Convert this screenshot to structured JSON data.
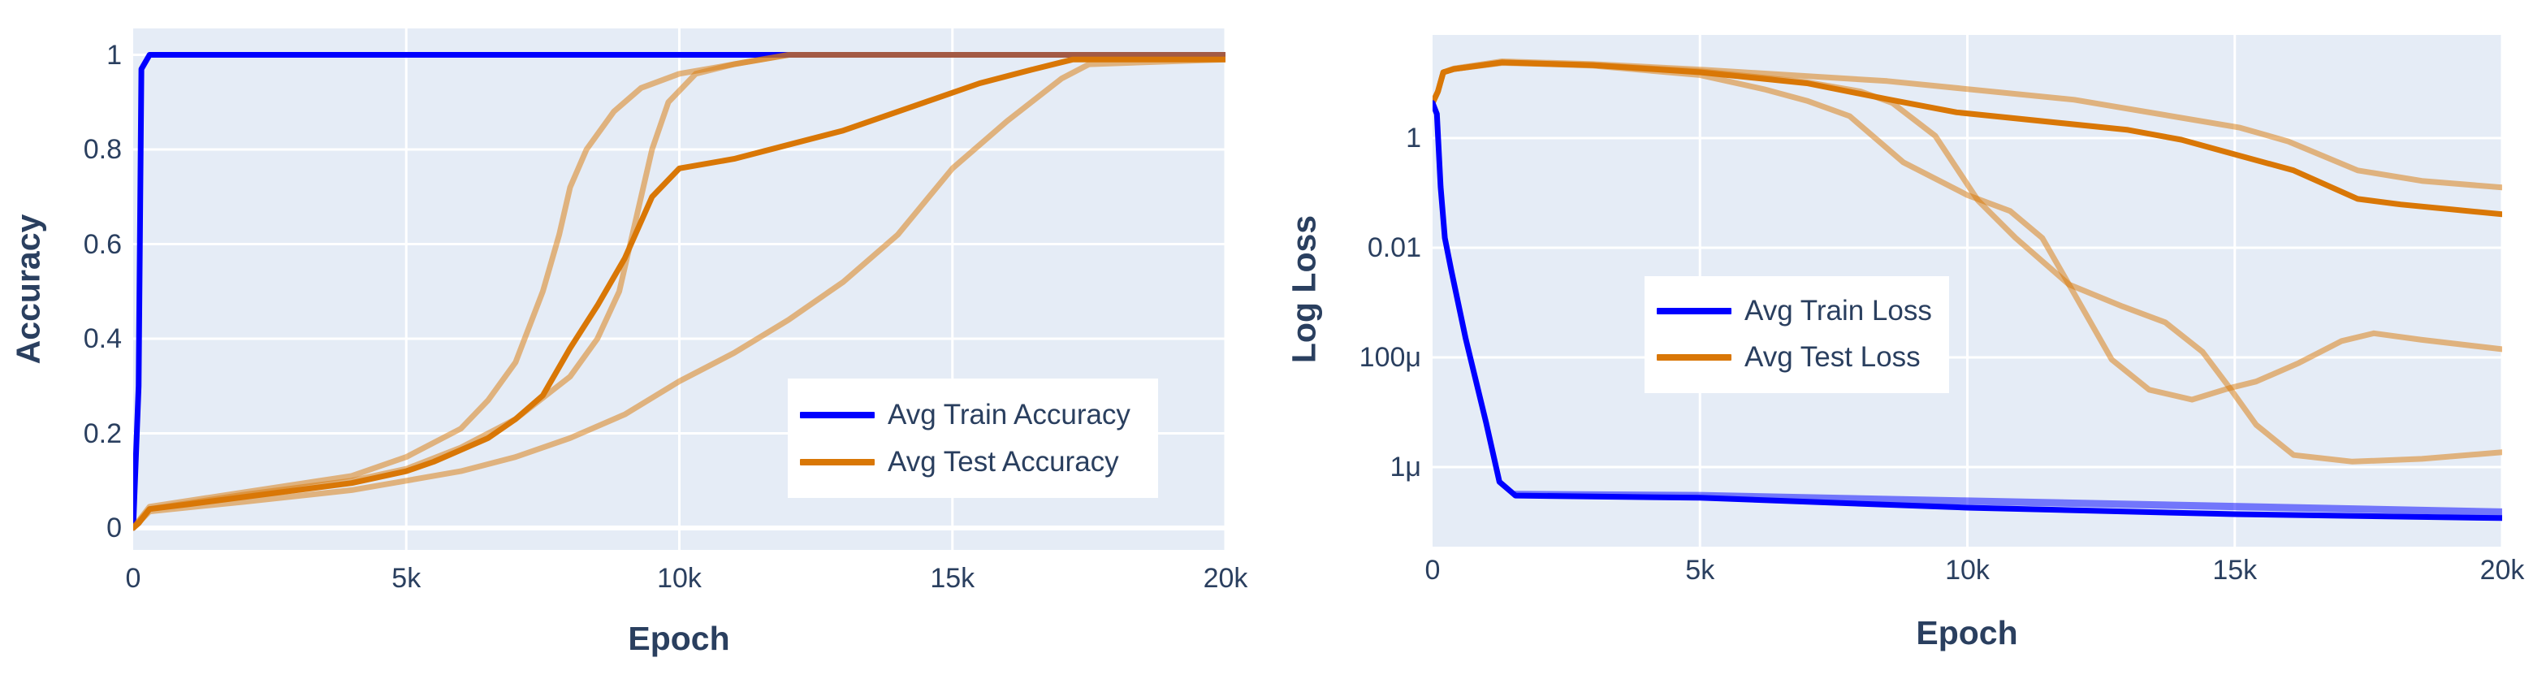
{
  "chart_data": [
    {
      "type": "line",
      "title": "",
      "xlabel": "Epoch",
      "ylabel": "Accuracy",
      "xlim": [
        0,
        20000
      ],
      "ylim": [
        -0.09,
        1.055
      ],
      "grid": true,
      "legend_position": "inside-bottom-right",
      "x_ticks": [
        {
          "v": 0,
          "label": "0"
        },
        {
          "v": 5000,
          "label": "5k"
        },
        {
          "v": 10000,
          "label": "10k"
        },
        {
          "v": 15000,
          "label": "15k"
        },
        {
          "v": 20000,
          "label": "20k"
        }
      ],
      "y_ticks": [
        {
          "v": 0,
          "label": "0"
        },
        {
          "v": 0.2,
          "label": "0.2"
        },
        {
          "v": 0.4,
          "label": "0.4"
        },
        {
          "v": 0.6,
          "label": "0.6"
        },
        {
          "v": 0.8,
          "label": "0.8"
        },
        {
          "v": 1,
          "label": "1"
        }
      ],
      "legend": [
        {
          "label": "Avg Train Accuracy",
          "color": "#0000ff"
        },
        {
          "label": "Avg Test Accuracy",
          "color": "#d97706"
        }
      ],
      "series": [
        {
          "name": "Avg Train Accuracy",
          "color": "#0000ff",
          "opacity": 1,
          "width": 7,
          "x": [
            0,
            100,
            150,
            300,
            20000
          ],
          "y": [
            0,
            0.3,
            0.97,
            1,
            1
          ]
        },
        {
          "name": "Test Accuracy run 1",
          "color": "#d97706",
          "opacity": 0.5,
          "width": 7,
          "in_legend": false,
          "x": [
            0,
            300,
            2000,
            4000,
            5000,
            6000,
            6500,
            7000,
            7500,
            7800,
            8000,
            8300,
            8800,
            9300,
            10000,
            11000,
            12000,
            20000
          ],
          "y": [
            0,
            0.045,
            0.075,
            0.11,
            0.15,
            0.21,
            0.27,
            0.35,
            0.5,
            0.62,
            0.72,
            0.8,
            0.88,
            0.93,
            0.96,
            0.98,
            1,
            1
          ]
        },
        {
          "name": "Test Accuracy run 2",
          "color": "#d97706",
          "opacity": 0.5,
          "width": 7,
          "in_legend": false,
          "x": [
            0,
            300,
            2000,
            4000,
            5000,
            6000,
            7000,
            8000,
            8500,
            8900,
            9200,
            9500,
            9800,
            10300,
            11000,
            12000,
            20000
          ],
          "y": [
            0,
            0.04,
            0.07,
            0.1,
            0.125,
            0.17,
            0.23,
            0.32,
            0.4,
            0.5,
            0.65,
            0.8,
            0.9,
            0.96,
            0.98,
            1,
            1
          ]
        },
        {
          "name": "Test Accuracy run 3",
          "color": "#d97706",
          "opacity": 0.5,
          "width": 7,
          "in_legend": false,
          "x": [
            0,
            300,
            2000,
            4000,
            5000,
            6000,
            7000,
            8000,
            9000,
            10000,
            11000,
            12000,
            13000,
            14000,
            14500,
            15000,
            16000,
            17000,
            17500,
            20000
          ],
          "y": [
            0,
            0.035,
            0.055,
            0.08,
            0.1,
            0.12,
            0.15,
            0.19,
            0.24,
            0.31,
            0.37,
            0.44,
            0.52,
            0.62,
            0.69,
            0.76,
            0.86,
            0.95,
            0.98,
            0.99
          ]
        },
        {
          "name": "Avg Test Accuracy",
          "color": "#d97706",
          "opacity": 1,
          "width": 7,
          "x": [
            0,
            100,
            300,
            1000,
            2000,
            3000,
            4000,
            5000,
            5500,
            6000,
            6500,
            7000,
            7500,
            8000,
            8500,
            9000,
            9500,
            10000,
            11000,
            12000,
            13000,
            13500,
            14500,
            15500,
            16500,
            17200,
            20000
          ],
          "y": [
            0,
            0.01,
            0.04,
            0.05,
            0.065,
            0.08,
            0.095,
            0.12,
            0.14,
            0.165,
            0.19,
            0.23,
            0.28,
            0.38,
            0.47,
            0.57,
            0.7,
            0.76,
            0.78,
            0.81,
            0.84,
            0.86,
            0.9,
            0.94,
            0.97,
            0.99,
            0.99
          ]
        }
      ]
    },
    {
      "type": "line",
      "title": "",
      "xlabel": "Epoch",
      "ylabel": "Log Loss",
      "yscale": "log",
      "xlim": [
        0,
        20000
      ],
      "ylim_log10": [
        -7.46,
        1.88
      ],
      "grid": true,
      "legend_position": "inside-middle-left",
      "x_ticks": [
        {
          "v": 0,
          "label": "0"
        },
        {
          "v": 5000,
          "label": "5k"
        },
        {
          "v": 10000,
          "label": "10k"
        },
        {
          "v": 15000,
          "label": "15k"
        },
        {
          "v": 20000,
          "label": "20k"
        }
      ],
      "y_ticks": [
        {
          "v": 0,
          "label": "1"
        },
        {
          "v": -2,
          "label": "0.01"
        },
        {
          "v": -4,
          "label": "100μ"
        },
        {
          "v": -6,
          "label": "1μ"
        }
      ],
      "legend": [
        {
          "label": "Avg Train Loss",
          "color": "#0000ff"
        },
        {
          "label": "Avg Test Loss",
          "color": "#d97706"
        }
      ],
      "series_note": "y values are log10(loss)",
      "series": [
        {
          "name": "Test Loss run 1",
          "color": "#d97706",
          "opacity": 0.5,
          "width": 7,
          "in_legend": false,
          "x": [
            0,
            100,
            200,
            400,
            1300,
            3000,
            5000,
            8500,
            12000,
            15100,
            16000,
            17300,
            18500,
            20000
          ],
          "y": [
            0.64,
            0.85,
            1.2,
            1.27,
            1.4,
            1.35,
            1.25,
            1.04,
            0.7,
            0.19,
            -0.06,
            -0.59,
            -0.78,
            -0.9
          ]
        },
        {
          "name": "Test Loss run 2",
          "color": "#d97706",
          "opacity": 0.5,
          "width": 7,
          "in_legend": false,
          "x": [
            0,
            100,
            200,
            400,
            1300,
            3000,
            5000,
            6200,
            7000,
            7800,
            8800,
            10000,
            10800,
            11400,
            11900,
            12700,
            13400,
            14200,
            14900,
            15400,
            16200,
            17000,
            17600,
            18500,
            20000
          ],
          "y": [
            0.64,
            0.85,
            1.2,
            1.26,
            1.38,
            1.32,
            1.15,
            0.89,
            0.68,
            0.4,
            -0.44,
            -1.04,
            -1.33,
            -1.82,
            -2.67,
            -4.04,
            -4.59,
            -4.77,
            -4.56,
            -4.44,
            -4.1,
            -3.7,
            -3.56,
            -3.68,
            -3.85
          ]
        },
        {
          "name": "Test Loss run 3",
          "color": "#d97706",
          "opacity": 0.5,
          "width": 7,
          "in_legend": false,
          "x": [
            0,
            100,
            200,
            400,
            1300,
            3000,
            5000,
            7000,
            8000,
            8600,
            9400,
            10200,
            10900,
            11900,
            12900,
            13700,
            14400,
            14900,
            15400,
            16100,
            17200,
            18500,
            20000
          ],
          "y": [
            0.64,
            0.85,
            1.2,
            1.26,
            1.37,
            1.33,
            1.22,
            1.02,
            0.85,
            0.64,
            0.04,
            -1.14,
            -1.82,
            -2.67,
            -3.07,
            -3.36,
            -3.9,
            -4.55,
            -5.23,
            -5.78,
            -5.9,
            -5.85,
            -5.73
          ]
        },
        {
          "name": "Avg Test Loss",
          "color": "#d97706",
          "opacity": 1,
          "width": 7,
          "x": [
            0,
            100,
            200,
            400,
            1300,
            3000,
            5000,
            7000,
            8500,
            9800,
            13000,
            14000,
            16100,
            17300,
            18100,
            20000
          ],
          "y": [
            0.64,
            0.85,
            1.2,
            1.26,
            1.38,
            1.33,
            1.2,
            1.0,
            0.71,
            0.47,
            0.15,
            -0.03,
            -0.59,
            -1.11,
            -1.21,
            -1.39
          ]
        },
        {
          "name": "Train Loss runs",
          "color": "#0000ff",
          "opacity": 0.5,
          "width": 9,
          "in_legend": false,
          "x": [
            1550,
            5000,
            10000,
            15000,
            20000
          ],
          "y": [
            -6.5,
            -6.52,
            -6.62,
            -6.72,
            -6.82
          ]
        },
        {
          "name": "Avg Train Loss",
          "color": "#0000ff",
          "opacity": 1,
          "width": 7,
          "x": [
            0,
            80,
            150,
            230,
            350,
            620,
            1000,
            1250,
            1550,
            5000,
            10000,
            15000,
            20000
          ],
          "y": [
            0.64,
            0.44,
            -0.89,
            -1.82,
            -2.41,
            -3.66,
            -5.19,
            -6.27,
            -6.52,
            -6.56,
            -6.74,
            -6.86,
            -6.93
          ]
        }
      ]
    }
  ],
  "figures": {
    "accuracy": {
      "ylabel": "Accuracy",
      "xlabel": "Epoch",
      "legend": {
        "train": "Avg Train Accuracy",
        "test": "Avg Test Accuracy"
      }
    },
    "loss": {
      "ylabel": "Log Loss",
      "xlabel": "Epoch",
      "legend": {
        "train": "Avg Train Loss",
        "test": "Avg Test Loss"
      }
    }
  },
  "colors": {
    "plot_bg": "#e5ecf6",
    "grid": "#ffffff",
    "text": "#2a3f5f",
    "train": "#0000ff",
    "test": "#d97706"
  }
}
